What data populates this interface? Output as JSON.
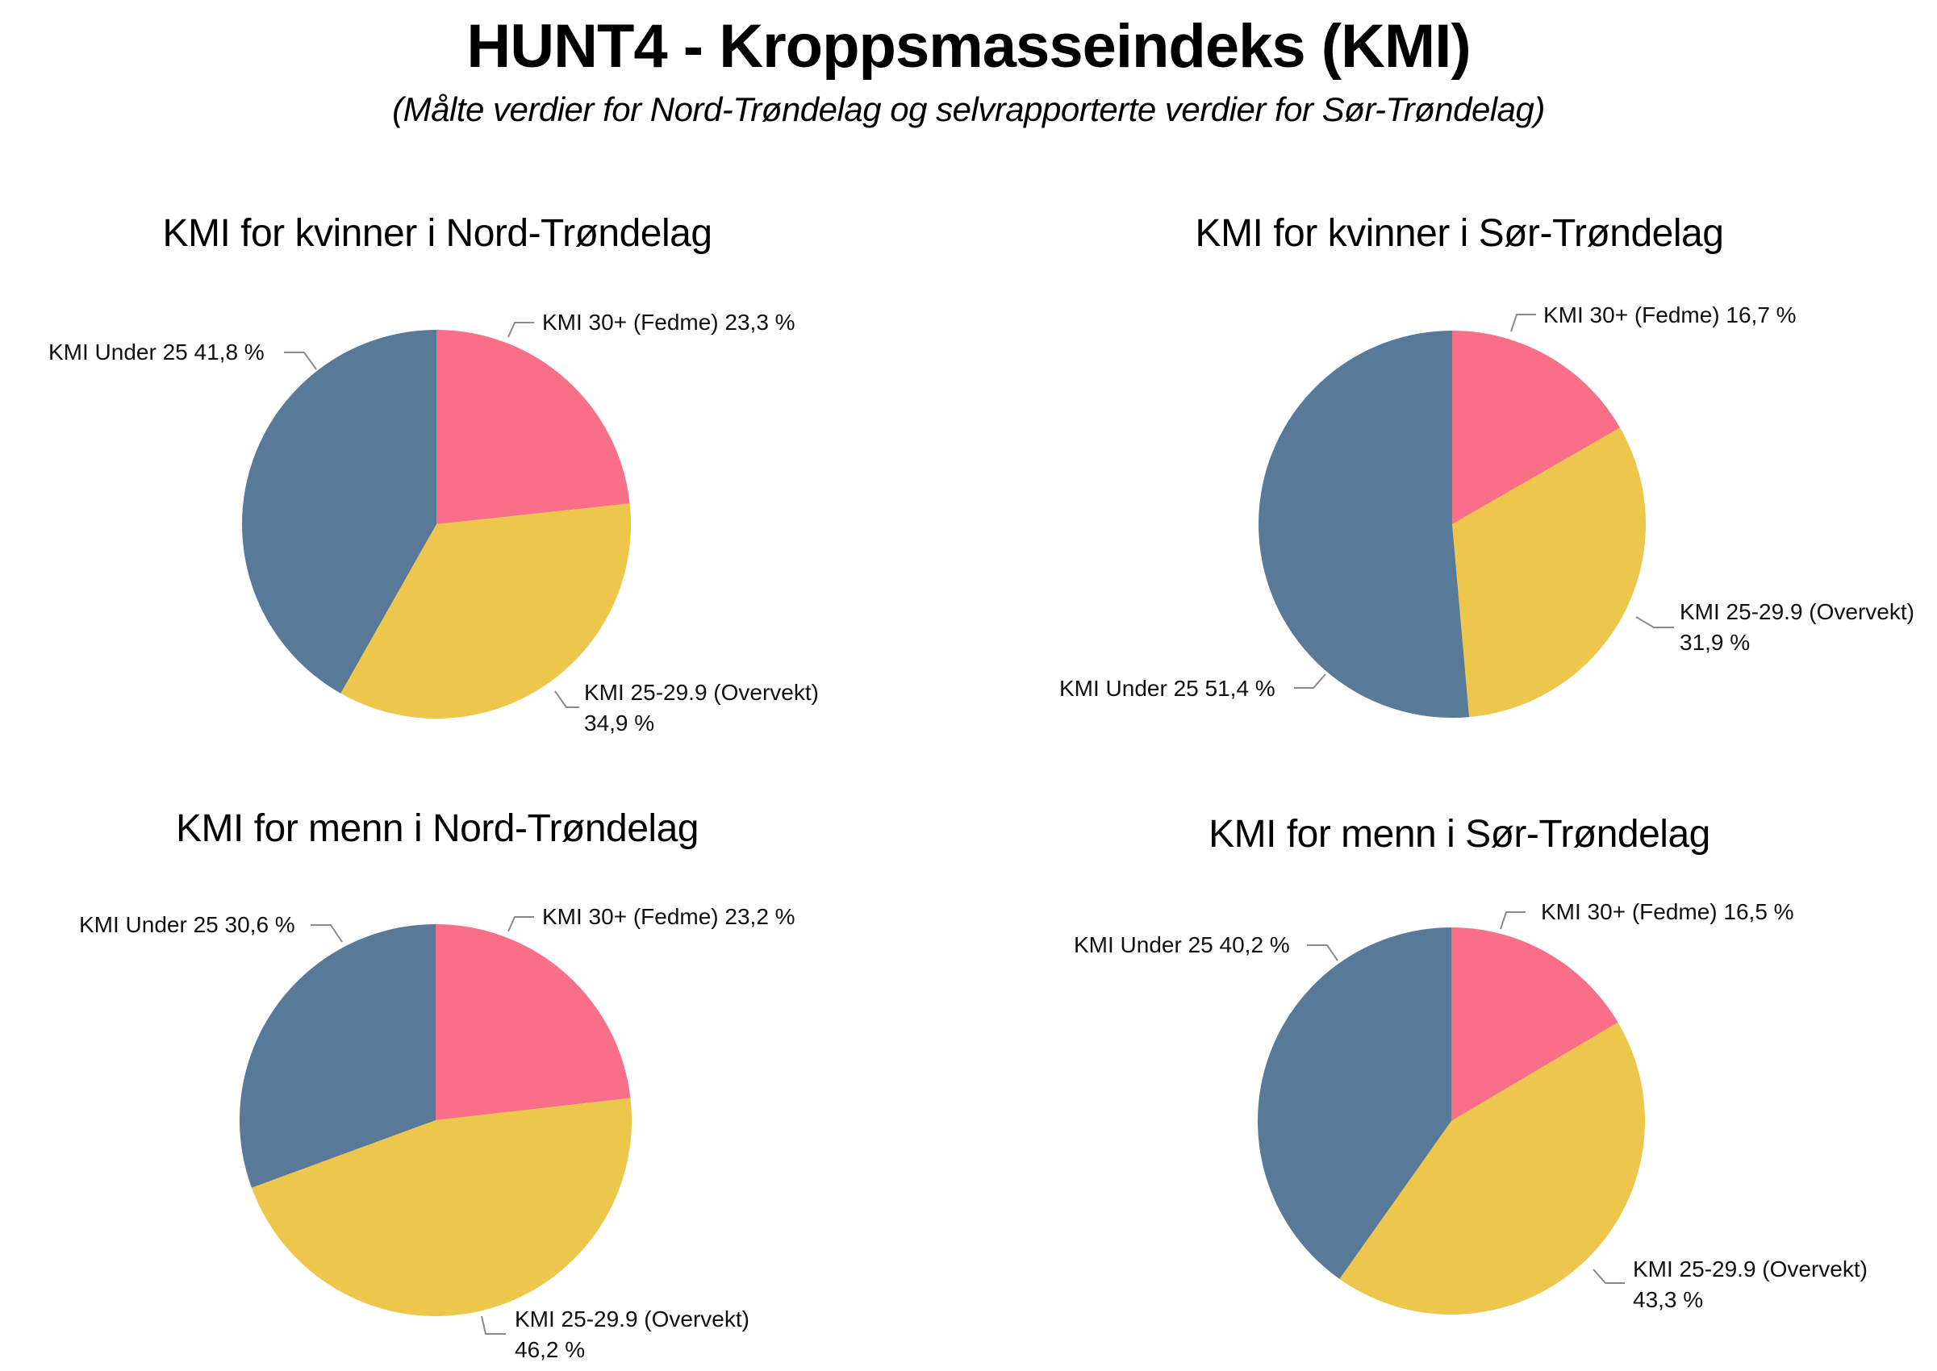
{
  "header": {
    "title": "HUNT4 - Kroppsmasseindeks (KMI)",
    "subtitle": "(Målte verdier for Nord-Trøndelag og selvrapporterte verdier for Sør-Trøndelag)"
  },
  "colors": {
    "obese": "#F96F87",
    "overweight": "#EDC64C",
    "under25": "#587A98",
    "leader": "#7f7f7f"
  },
  "chart_data": [
    {
      "type": "pie",
      "title": "KMI for kvinner i Nord-Trøndelag",
      "categories": [
        "KMI 30+ (Fedme)",
        "KMI 25-29.9 (Overvekt)",
        "KMI Under 25"
      ],
      "values": [
        23.3,
        34.9,
        41.8
      ],
      "value_labels": [
        "23,3 %",
        "34,9 %",
        "41,8 %"
      ],
      "start_angle": "12 o'clock, clockwise",
      "legend": "none (data labels with leader lines)"
    },
    {
      "type": "pie",
      "title": "KMI for kvinner i Sør-Trøndelag",
      "categories": [
        "KMI 30+ (Fedme)",
        "KMI 25-29.9 (Overvekt)",
        "KMI Under 25"
      ],
      "values": [
        16.7,
        31.9,
        51.4
      ],
      "value_labels": [
        "16,7 %",
        "31,9 %",
        "51,4 %"
      ],
      "start_angle": "12 o'clock, clockwise",
      "legend": "none (data labels with leader lines)"
    },
    {
      "type": "pie",
      "title": "KMI for menn i Nord-Trøndelag",
      "categories": [
        "KMI 30+ (Fedme)",
        "KMI 25-29.9 (Overvekt)",
        "KMI Under 25"
      ],
      "values": [
        23.2,
        46.2,
        30.6
      ],
      "value_labels": [
        "23,2 %",
        "46,2 %",
        "30,6 %"
      ],
      "start_angle": "12 o'clock, clockwise",
      "legend": "none (data labels with leader lines)"
    },
    {
      "type": "pie",
      "title": "KMI for menn i Sør-Trøndelag",
      "categories": [
        "KMI 30+ (Fedme)",
        "KMI 25-29.9 (Overvekt)",
        "KMI Under 25"
      ],
      "values": [
        16.5,
        43.3,
        40.2
      ],
      "value_labels": [
        "16,5 %",
        "43,3 %",
        "40,2 %"
      ],
      "start_angle": "12 o'clock, clockwise",
      "legend": "none (data labels with leader lines)"
    }
  ],
  "labels": {
    "p0": {
      "obese": "KMI 30+ (Fedme) 23,3 %",
      "over_line1": "KMI 25-29.9 (Overvekt)",
      "over_line2": "34,9 %",
      "under": "KMI Under 25 41,8 %"
    },
    "p1": {
      "obese": "KMI 30+ (Fedme) 16,7 %",
      "over_line1": "KMI 25-29.9 (Overvekt)",
      "over_line2": "31,9 %",
      "under": "KMI Under 25 51,4 %"
    },
    "p2": {
      "obese": "KMI 30+ (Fedme) 23,2 %",
      "over_line1": "KMI 25-29.9 (Overvekt)",
      "over_line2": "46,2 %",
      "under": "KMI Under 25 30,6 %"
    },
    "p3": {
      "obese": "KMI 30+ (Fedme) 16,5 %",
      "over_line1": "KMI 25-29.9 (Overvekt)",
      "over_line2": "43,3 %",
      "under": "KMI Under 25 40,2 %"
    }
  }
}
